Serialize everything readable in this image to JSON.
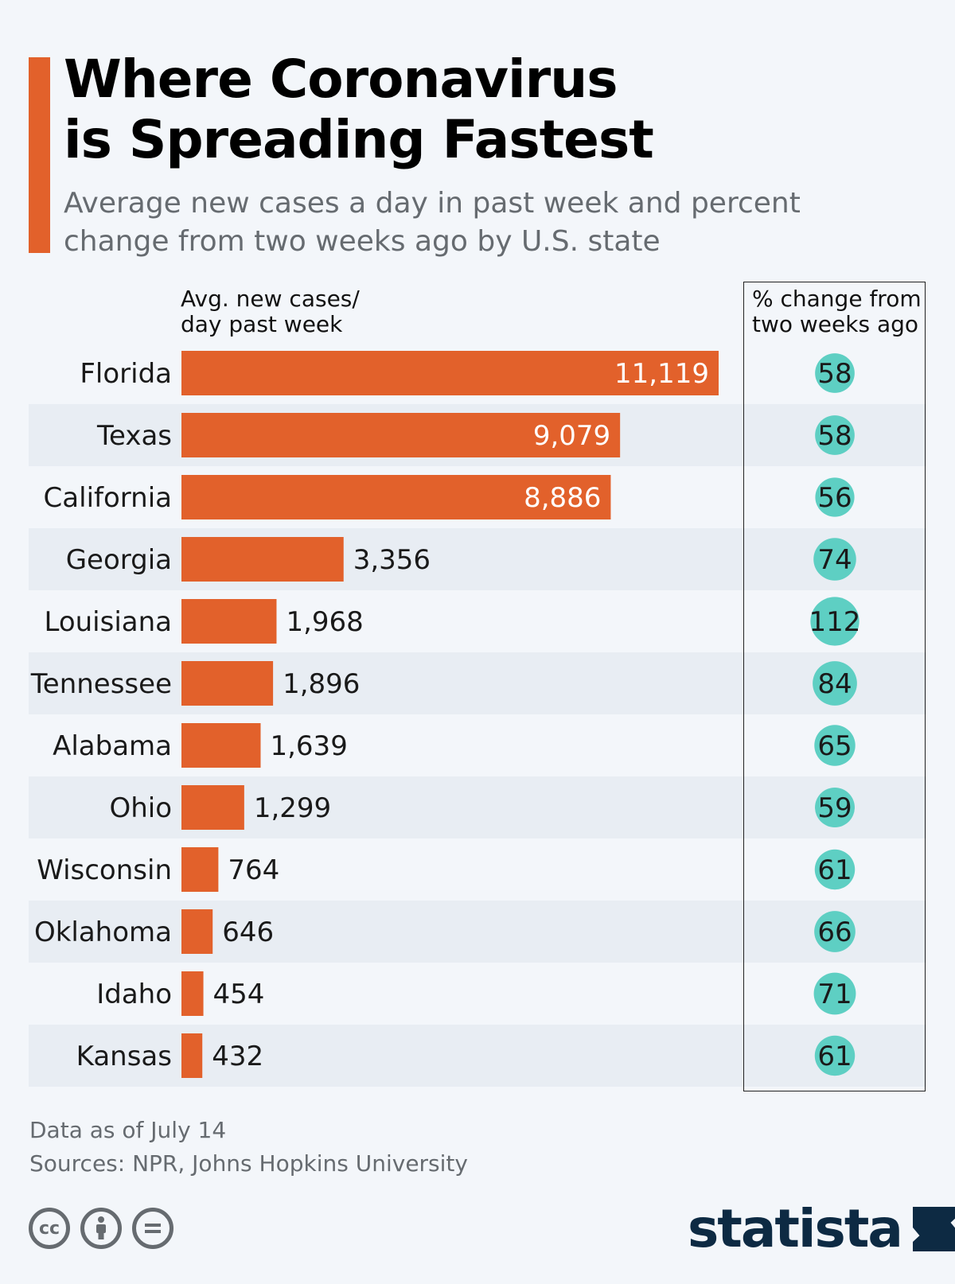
{
  "header": {
    "title_line1": "Where Coronavirus",
    "title_line2": "is Spreading Fastest",
    "subtitle_line1": "Average new cases a day in past week and percent",
    "subtitle_line2": "change from two weeks ago by U.S. state"
  },
  "columns": {
    "left_header_line1": "Avg. new cases/",
    "left_header_line2": "day past week",
    "right_header_line1": "% change from",
    "right_header_line2": "two weeks ago"
  },
  "chart_data": {
    "type": "bar",
    "orientation": "horizontal",
    "title": "Where Coronavirus is Spreading Fastest",
    "subtitle": "Average new cases a day in past week and percent change from two weeks ago by U.S. state",
    "categories": [
      "Florida",
      "Texas",
      "California",
      "Georgia",
      "Louisiana",
      "Tennessee",
      "Alabama",
      "Ohio",
      "Wisconsin",
      "Oklahoma",
      "Idaho",
      "Kansas"
    ],
    "series": [
      {
        "name": "Avg. new cases/day past week",
        "values": [
          11119,
          9079,
          8886,
          3356,
          1968,
          1896,
          1639,
          1299,
          764,
          646,
          454,
          432
        ]
      },
      {
        "name": "% change from two weeks ago",
        "values": [
          58,
          58,
          56,
          74,
          112,
          84,
          65,
          59,
          61,
          66,
          71,
          61
        ]
      }
    ],
    "value_labels": [
      "11,119",
      "9,079",
      "8,886",
      "3,356",
      "1,968",
      "1,896",
      "1,639",
      "1,299",
      "764",
      "646",
      "454",
      "432"
    ],
    "pct_labels": [
      "58",
      "58",
      "56",
      "74",
      "112",
      "84",
      "65",
      "59",
      "61",
      "66",
      "71",
      "61"
    ],
    "xlim": [
      0,
      11119
    ],
    "colors": {
      "bar": "#e2612b",
      "bubble": "#5ecfc3",
      "row_alt": "#e8edf3"
    }
  },
  "footer": {
    "note": "Data as of July 14",
    "sources": "Sources: NPR, Johns Hopkins University",
    "brand": "statista"
  }
}
